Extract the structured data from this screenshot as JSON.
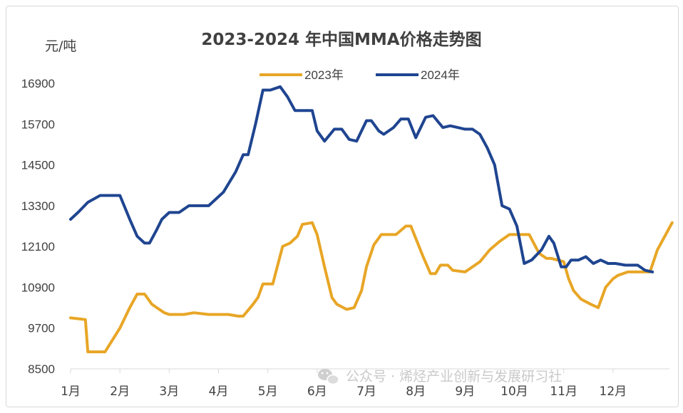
{
  "chart_data": {
    "type": "line",
    "title": "2023-2024 年中国MMA价格走势图",
    "ylabel": "元/吨",
    "ylim": [
      8500,
      16900
    ],
    "yticks": [
      8500,
      9700,
      10900,
      12100,
      13300,
      14500,
      15700,
      16900
    ],
    "categories": [
      "1月",
      "2月",
      "3月",
      "4月",
      "5月",
      "6月",
      "7月",
      "8月",
      "9月",
      "10月",
      "11月",
      "12月"
    ],
    "grid": false,
    "legend_position": "top",
    "series": [
      {
        "name": "2023年",
        "color": "#E8A626",
        "x": [
          0,
          0.3,
          0.35,
          0.5,
          0.7,
          1.0,
          1.1,
          1.2,
          1.35,
          1.5,
          1.65,
          1.75,
          1.9,
          2.0,
          2.3,
          2.5,
          2.8,
          3.0,
          3.2,
          3.4,
          3.5,
          3.7,
          3.8,
          3.9,
          4.1,
          4.3,
          4.45,
          4.6,
          4.7,
          4.9,
          5.0,
          5.15,
          5.3,
          5.4,
          5.6,
          5.75,
          5.9,
          6.0,
          6.15,
          6.3,
          6.4,
          6.6,
          6.8,
          6.9,
          7.15,
          7.3,
          7.4,
          7.5,
          7.65,
          7.75,
          8.0,
          8.2,
          8.3,
          8.5,
          8.7,
          8.9,
          9.0,
          9.3,
          9.5,
          9.65,
          9.75,
          10.0,
          10.1,
          10.2,
          10.35,
          10.55,
          10.7,
          10.85,
          11.0,
          11.1,
          11.3,
          11.5,
          11.6,
          11.75,
          11.9,
          12.2
        ],
        "values": [
          10000,
          9950,
          9000,
          9000,
          9000,
          9700,
          10000,
          10300,
          10700,
          10700,
          10400,
          10300,
          10150,
          10100,
          10100,
          10150,
          10100,
          10100,
          10100,
          10050,
          10050,
          10400,
          10600,
          11000,
          11000,
          12100,
          12200,
          12400,
          12750,
          12800,
          12450,
          11500,
          10600,
          10400,
          10250,
          10300,
          10800,
          11500,
          12150,
          12450,
          12450,
          12450,
          12700,
          12700,
          11800,
          11300,
          11300,
          11550,
          11550,
          11400,
          11350,
          11550,
          11650,
          12000,
          12250,
          12450,
          12450,
          12450,
          11900,
          11750,
          11750,
          11650,
          11150,
          10800,
          10550,
          10400,
          10300,
          10900,
          11150,
          11250,
          11350,
          11350,
          11350,
          11350,
          12000,
          12800
        ]
      },
      {
        "name": "2024年",
        "color": "#1F4590",
        "x": [
          0,
          0.15,
          0.35,
          0.6,
          0.8,
          1.0,
          1.2,
          1.35,
          1.5,
          1.6,
          1.75,
          1.85,
          2.0,
          2.2,
          2.4,
          2.6,
          2.8,
          3.1,
          3.35,
          3.5,
          3.6,
          3.75,
          3.9,
          4.05,
          4.25,
          4.4,
          4.55,
          4.7,
          4.9,
          5.0,
          5.15,
          5.35,
          5.5,
          5.65,
          5.8,
          6.0,
          6.1,
          6.25,
          6.35,
          6.55,
          6.7,
          6.85,
          7.0,
          7.2,
          7.35,
          7.55,
          7.7,
          7.85,
          8.0,
          8.15,
          8.3,
          8.45,
          8.6,
          8.75,
          8.9,
          9.05,
          9.2,
          9.35,
          9.55,
          9.7,
          9.8,
          9.95,
          10.05,
          10.15,
          10.3,
          10.45,
          10.6,
          10.75,
          10.9,
          11.05,
          11.25,
          11.5,
          11.65,
          11.8
        ],
        "values": [
          12900,
          13100,
          13400,
          13600,
          13600,
          13600,
          12900,
          12400,
          12200,
          12200,
          12600,
          12900,
          13100,
          13100,
          13300,
          13300,
          13300,
          13700,
          14300,
          14800,
          14800,
          15700,
          16700,
          16700,
          16800,
          16500,
          16100,
          16100,
          16100,
          15500,
          15200,
          15550,
          15550,
          15250,
          15200,
          15800,
          15800,
          15500,
          15400,
          15600,
          15850,
          15850,
          15300,
          15900,
          15950,
          15600,
          15650,
          15600,
          15550,
          15550,
          15400,
          15000,
          14500,
          13300,
          13200,
          12700,
          11600,
          11700,
          12000,
          12400,
          12200,
          11500,
          11500,
          11700,
          11700,
          11800,
          11600,
          11700,
          11600,
          11600,
          11550,
          11550,
          11400,
          11350
        ]
      }
    ]
  },
  "watermark": {
    "icon": "wechat-icon",
    "text": "公众号 · 烯烃产业创新与发展研习社"
  }
}
